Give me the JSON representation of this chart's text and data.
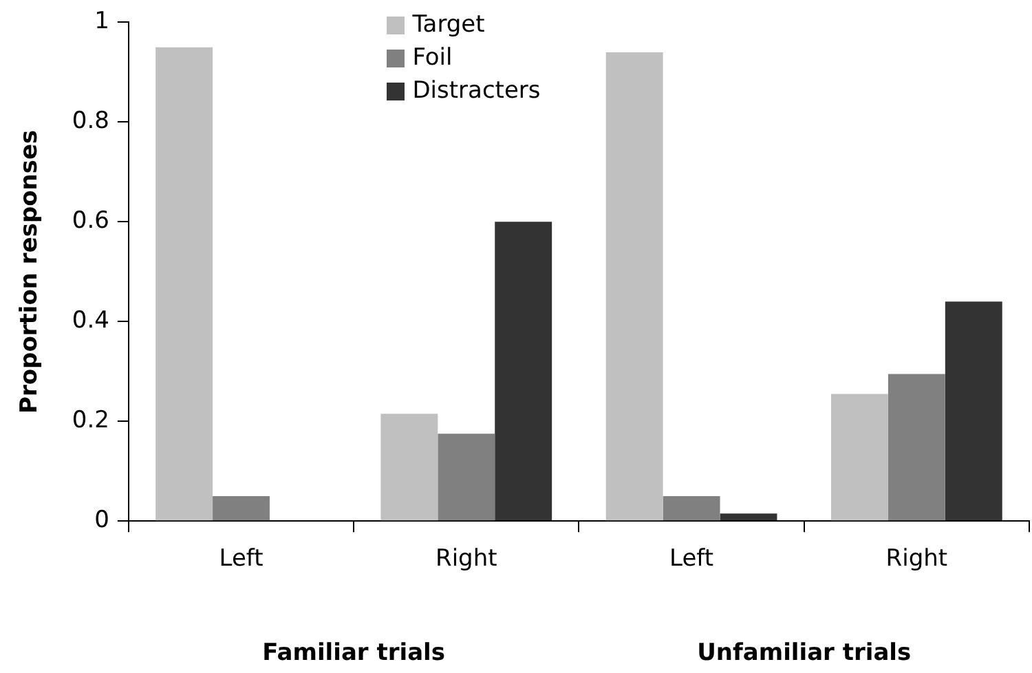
{
  "chart_data": {
    "type": "bar",
    "ylabel": "Proportion responses",
    "categories": [
      "Left",
      "Right",
      "Left",
      "Right"
    ],
    "series": [
      {
        "name": "Target",
        "color": "#c0c0c0",
        "values": [
          0.95,
          0.215,
          0.94,
          0.255
        ]
      },
      {
        "name": "Foil",
        "color": "#808080",
        "values": [
          0.05,
          0.175,
          0.05,
          0.295
        ]
      },
      {
        "name": "Distracters",
        "color": "#333333",
        "values": [
          0,
          0.6,
          0.015,
          0.44
        ]
      }
    ],
    "ylim": [
      0,
      1
    ],
    "yticks": [
      0,
      0.2,
      0.4,
      0.6,
      0.8,
      1
    ],
    "grid": false,
    "legend": "top",
    "annotations": [
      "Familiar trials",
      "Unfamiliar trials"
    ]
  }
}
